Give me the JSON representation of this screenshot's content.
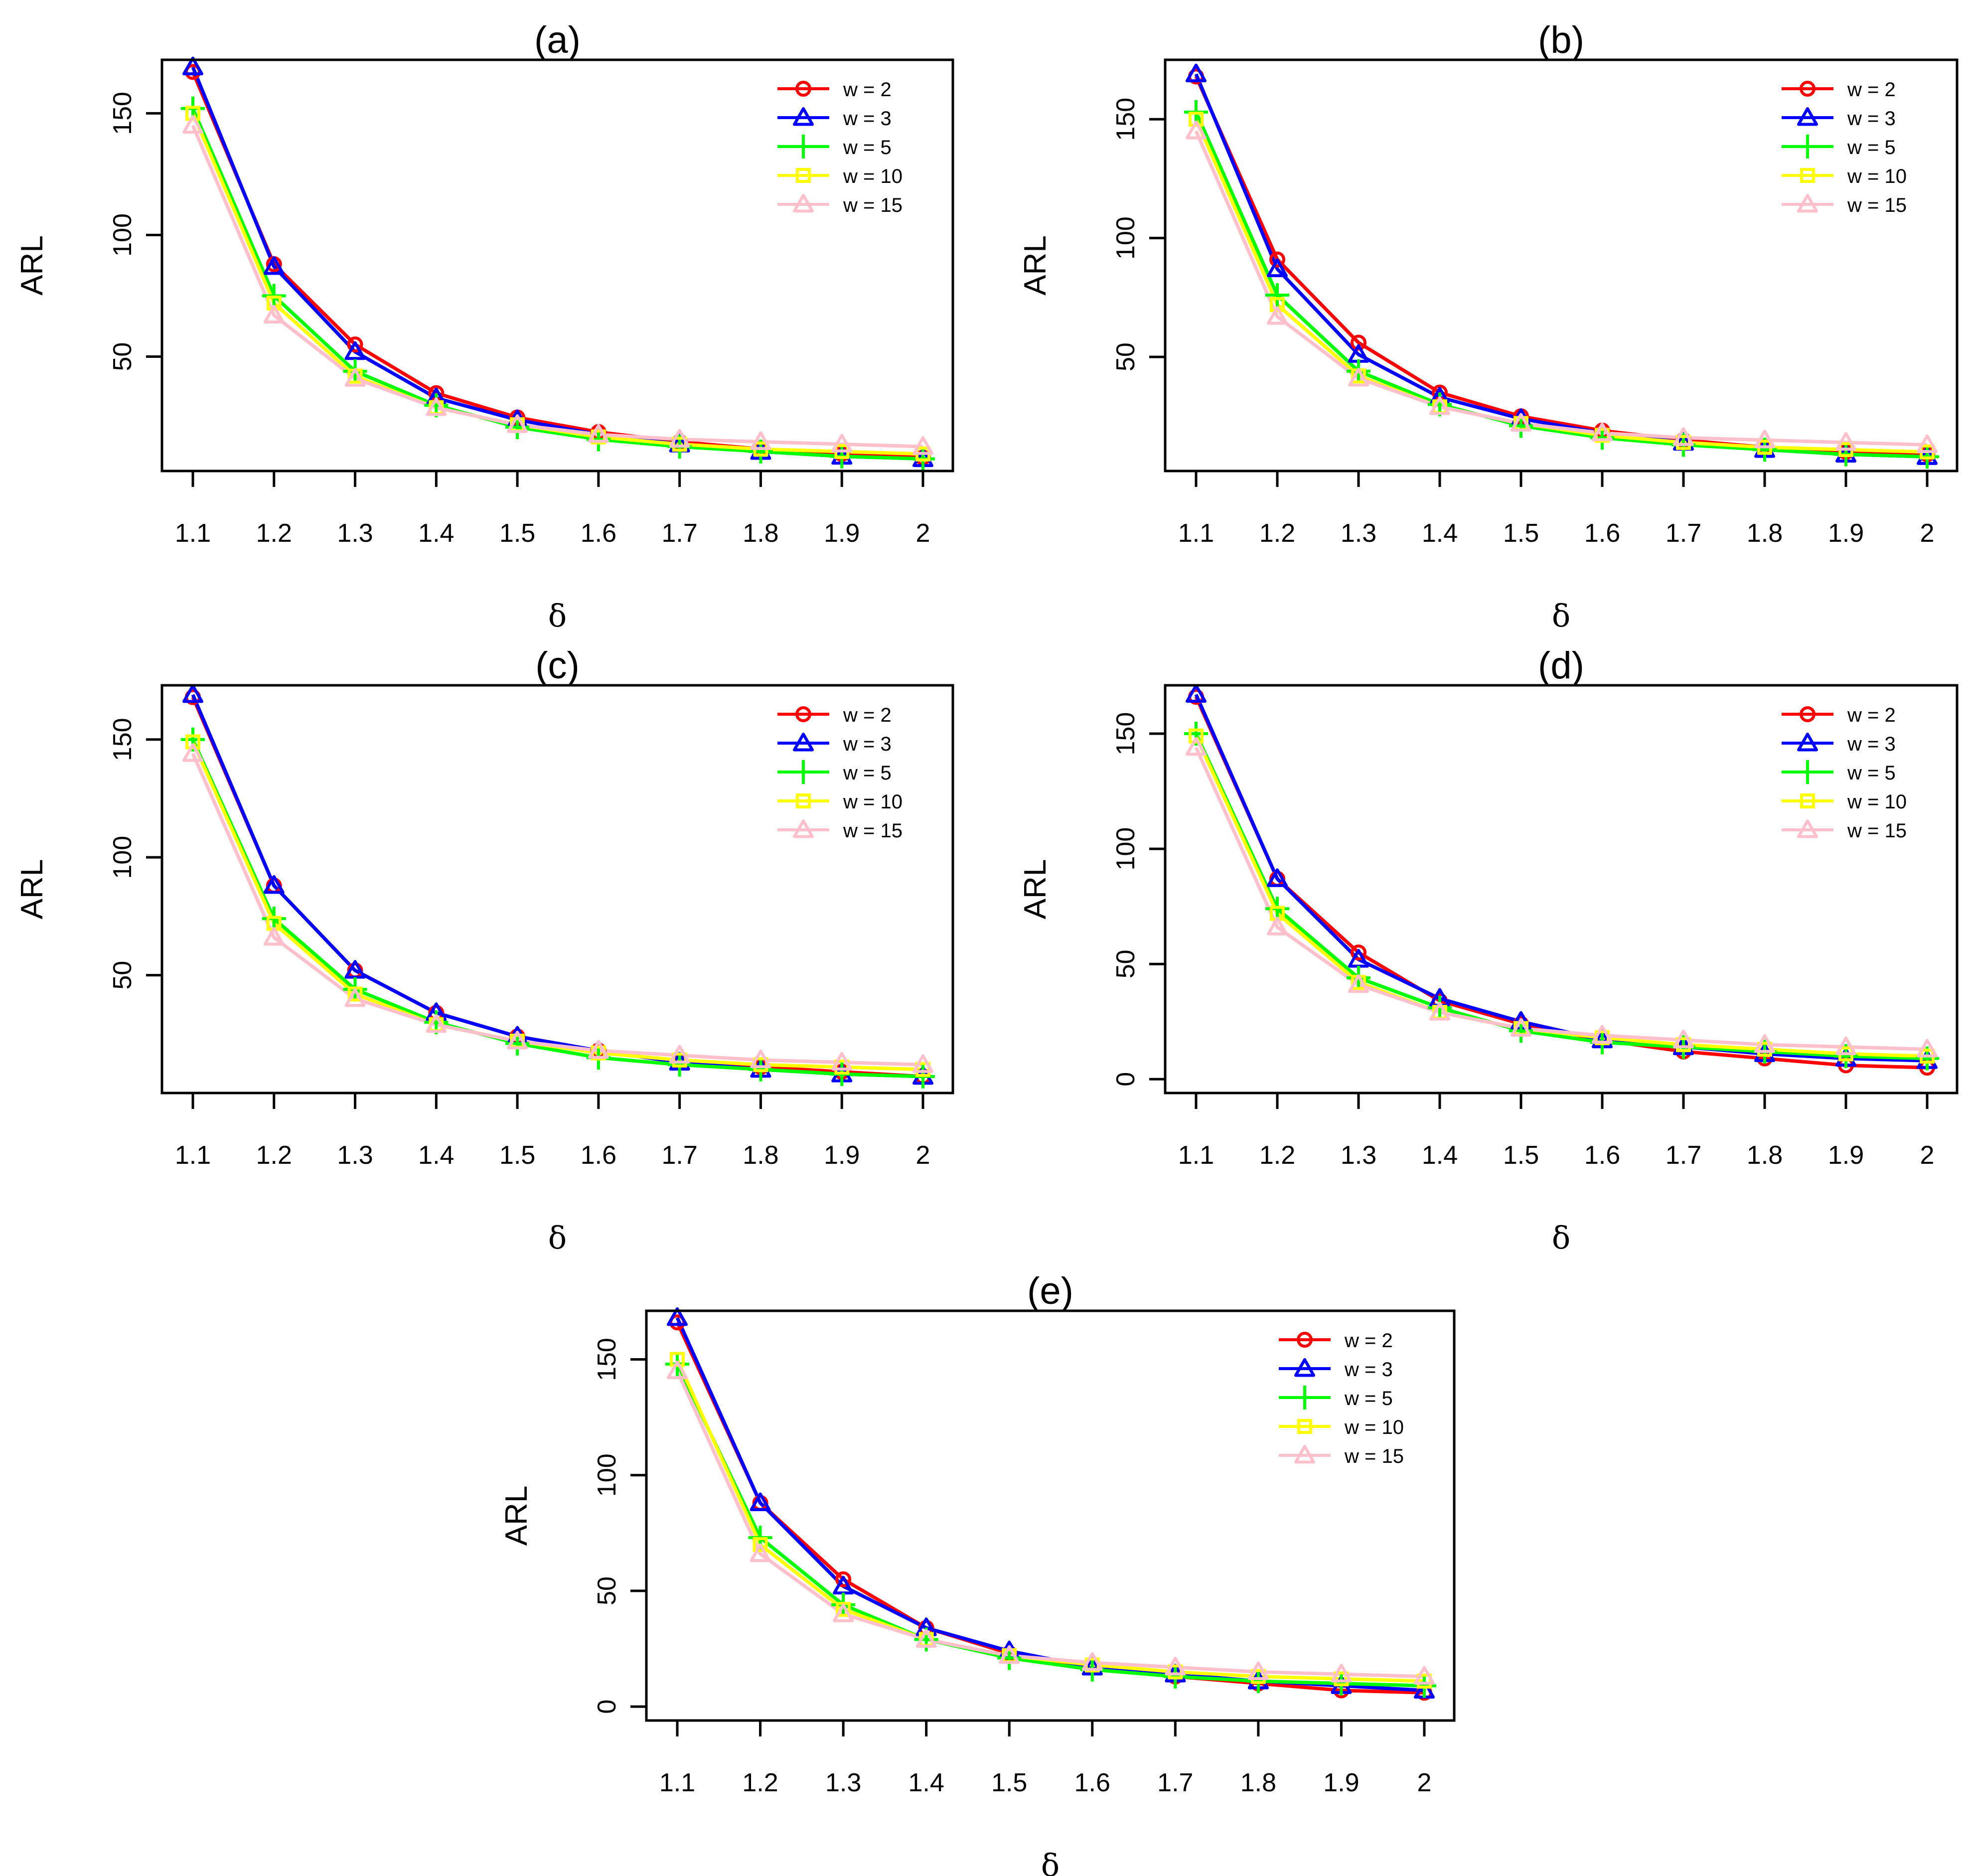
{
  "chart_data": [
    {
      "panel": "a",
      "type": "line",
      "title": "(a)",
      "xlabel": "δ",
      "ylabel": "ARL",
      "categories": [
        "1.1",
        "1.2",
        "1.3",
        "1.4",
        "1.5",
        "1.6",
        "1.7",
        "1.8",
        "1.9",
        "2"
      ],
      "ylim": [
        3,
        172
      ],
      "yticks": [
        "50",
        "100",
        "150"
      ],
      "series": [
        {
          "name": "w = 2",
          "color": "#ff0000",
          "marker": "circle",
          "values": [
            167,
            88,
            55,
            35,
            25,
            19,
            15,
            12,
            10,
            8.5
          ]
        },
        {
          "name": "w = 3",
          "color": "#0000ff",
          "marker": "triangle",
          "values": [
            169,
            87,
            52,
            33,
            24,
            18,
            14,
            11,
            9,
            8
          ]
        },
        {
          "name": "w = 5",
          "color": "#00ff00",
          "marker": "plus",
          "values": [
            152,
            75,
            44,
            30,
            21,
            16,
            13,
            11,
            9,
            8
          ]
        },
        {
          "name": "w = 10",
          "color": "#ffff00",
          "marker": "square",
          "values": [
            150,
            72,
            42,
            29,
            22,
            17,
            14,
            12,
            11,
            10
          ]
        },
        {
          "name": "w = 15",
          "color": "#ffc0cb",
          "marker": "triangle-up",
          "values": [
            145,
            67,
            41,
            29,
            22,
            18,
            16,
            15,
            14,
            13
          ]
        }
      ]
    },
    {
      "panel": "b",
      "type": "line",
      "title": "(b)",
      "xlabel": "δ",
      "ylabel": "ARL",
      "categories": [
        "1.1",
        "1.2",
        "1.3",
        "1.4",
        "1.5",
        "1.6",
        "1.7",
        "1.8",
        "1.9",
        "2"
      ],
      "ylim": [
        2,
        175
      ],
      "yticks": [
        "50",
        "100",
        "150"
      ],
      "series": [
        {
          "name": "w = 2",
          "color": "#ff0000",
          "marker": "circle",
          "values": [
            168,
            91,
            56,
            35,
            25,
            19,
            15,
            12,
            10,
            9
          ]
        },
        {
          "name": "w = 3",
          "color": "#0000ff",
          "marker": "triangle",
          "values": [
            169,
            87,
            51,
            33,
            24,
            18,
            14,
            11,
            9,
            8
          ]
        },
        {
          "name": "w = 5",
          "color": "#00ff00",
          "marker": "plus",
          "values": [
            153,
            76,
            44,
            30,
            21,
            16,
            13,
            11,
            9,
            8
          ]
        },
        {
          "name": "w = 10",
          "color": "#ffff00",
          "marker": "square",
          "values": [
            150,
            72,
            42,
            29,
            22,
            17,
            14,
            12,
            11,
            10
          ]
        },
        {
          "name": "w = 15",
          "color": "#ffc0cb",
          "marker": "triangle-up",
          "values": [
            145,
            67,
            41,
            29,
            22,
            18,
            16,
            15,
            14,
            13
          ]
        }
      ]
    },
    {
      "panel": "c",
      "type": "line",
      "title": "(c)",
      "xlabel": "δ",
      "ylabel": "ARL",
      "categories": [
        "1.1",
        "1.2",
        "1.3",
        "1.4",
        "1.5",
        "1.6",
        "1.7",
        "1.8",
        "1.9",
        "2"
      ],
      "ylim": [
        0,
        173
      ],
      "yticks": [
        "50",
        "100",
        "150"
      ],
      "series": [
        {
          "name": "w = 2",
          "color": "#ff0000",
          "marker": "circle",
          "values": [
            168,
            88,
            52,
            34,
            24,
            18,
            13,
            11,
            9,
            7
          ]
        },
        {
          "name": "w = 3",
          "color": "#0000ff",
          "marker": "triangle",
          "values": [
            169,
            88,
            52,
            34,
            24,
            18,
            13,
            10,
            8,
            7
          ]
        },
        {
          "name": "w = 5",
          "color": "#00ff00",
          "marker": "plus",
          "values": [
            150,
            74,
            44,
            30,
            21,
            15,
            12,
            10,
            8,
            7
          ]
        },
        {
          "name": "w = 10",
          "color": "#ffff00",
          "marker": "square",
          "values": [
            149,
            72,
            42,
            29,
            22,
            17,
            14,
            12,
            11,
            10
          ]
        },
        {
          "name": "w = 15",
          "color": "#ffc0cb",
          "marker": "triangle-up",
          "values": [
            144,
            66,
            40,
            29,
            22,
            18,
            16,
            14,
            13,
            12
          ]
        }
      ]
    },
    {
      "panel": "d",
      "type": "line",
      "title": "(d)",
      "xlabel": "δ",
      "ylabel": "ARL",
      "categories": [
        "1.1",
        "1.2",
        "1.3",
        "1.4",
        "1.5",
        "1.6",
        "1.7",
        "1.8",
        "1.9",
        "2"
      ],
      "ylim": [
        -6,
        171
      ],
      "yticks": [
        "0",
        "50",
        "100",
        "150"
      ],
      "series": [
        {
          "name": "w = 2",
          "color": "#ff0000",
          "marker": "circle",
          "values": [
            166,
            87,
            55,
            34,
            24,
            17,
            12,
            9,
            6,
            5
          ]
        },
        {
          "name": "w = 3",
          "color": "#0000ff",
          "marker": "triangle",
          "values": [
            167,
            87,
            52,
            35,
            25,
            17,
            14,
            11,
            9,
            8
          ]
        },
        {
          "name": "w = 5",
          "color": "#00ff00",
          "marker": "plus",
          "values": [
            150,
            74,
            44,
            31,
            21,
            16,
            14,
            12,
            10,
            9
          ]
        },
        {
          "name": "w = 10",
          "color": "#ffff00",
          "marker": "square",
          "values": [
            149,
            72,
            42,
            29,
            22,
            18,
            15,
            13,
            11,
            10
          ]
        },
        {
          "name": "w = 15",
          "color": "#ffc0cb",
          "marker": "triangle-up",
          "values": [
            144,
            66,
            41,
            29,
            22,
            19,
            17,
            15,
            14,
            13
          ]
        }
      ]
    },
    {
      "panel": "e",
      "type": "line",
      "title": "(e)",
      "xlabel": "δ",
      "ylabel": "ARL",
      "categories": [
        "1.1",
        "1.2",
        "1.3",
        "1.4",
        "1.5",
        "1.6",
        "1.7",
        "1.8",
        "1.9",
        "2"
      ],
      "ylim": [
        -6,
        171
      ],
      "yticks": [
        "0",
        "50",
        "100",
        "150"
      ],
      "series": [
        {
          "name": "w = 2",
          "color": "#ff0000",
          "marker": "circle",
          "values": [
            166,
            88,
            55,
            34,
            23,
            17,
            13,
            10,
            7,
            6
          ]
        },
        {
          "name": "w = 3",
          "color": "#0000ff",
          "marker": "triangle",
          "values": [
            168,
            88,
            52,
            34,
            24,
            17,
            14,
            11,
            9,
            7
          ]
        },
        {
          "name": "w = 5",
          "color": "#00ff00",
          "marker": "plus",
          "values": [
            148,
            73,
            44,
            29,
            21,
            16,
            13,
            11,
            10,
            9
          ]
        },
        {
          "name": "w = 10",
          "color": "#ffff00",
          "marker": "square",
          "values": [
            150,
            70,
            42,
            29,
            22,
            18,
            15,
            13,
            12,
            11
          ]
        },
        {
          "name": "w = 15",
          "color": "#ffc0cb",
          "marker": "triangle-up",
          "values": [
            145,
            66,
            40,
            29,
            22,
            19,
            17,
            15,
            14,
            13
          ]
        }
      ]
    }
  ]
}
